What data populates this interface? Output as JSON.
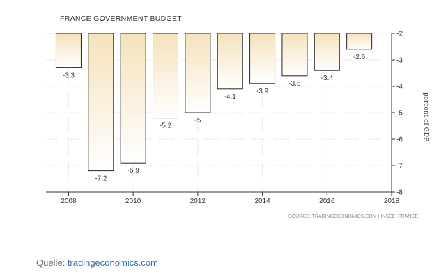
{
  "chart_data": {
    "type": "bar",
    "title": "FRANCE GOVERNMENT BUDGET",
    "ylabel": "percent of GDP",
    "xlabel": "",
    "x": [
      2008,
      2009,
      2010,
      2011,
      2012,
      2013,
      2014,
      2015,
      2016,
      2017
    ],
    "values": [
      -3.3,
      -7.2,
      -6.9,
      -5.2,
      -5,
      -4.1,
      -3.9,
      -3.6,
      -3.4,
      -2.6
    ],
    "data_labels": [
      "-3.3",
      "-7.2",
      "-6.9",
      "-5.2",
      "-5",
      "-4.1",
      "-3.9",
      "-3.6",
      "-3.4",
      "-2.6"
    ],
    "xlim": [
      2007.3,
      2018
    ],
    "x_ticks": [
      2008,
      2010,
      2012,
      2014,
      2016,
      2018
    ],
    "x_tick_labels": [
      "2008",
      "2010",
      "2012",
      "2014",
      "2016",
      "2018"
    ],
    "ylim": [
      -8,
      -2
    ],
    "y_ticks": [
      -2,
      -3,
      -4,
      -5,
      -6,
      -7,
      -8
    ],
    "y_tick_labels": [
      "-2",
      "-3",
      "-4",
      "-5",
      "-6",
      "-7",
      "-8"
    ],
    "y_axis_side": "right",
    "bar_baseline": -2,
    "grid": true,
    "source": "SOURCE: TRADINGECONOMICS.COM | INSEE, FRANCE",
    "colors": {
      "bar_top": "#f5e2bc",
      "bar_bottom": "#ffffff",
      "bar_stroke": "#262626",
      "grid": "#d8d8d8",
      "axis": "#333333",
      "text": "#333333",
      "source_text": "#8a8a8a"
    }
  },
  "footer": {
    "prefix": "Quelle: ",
    "link": "tradingeconomics.com"
  }
}
